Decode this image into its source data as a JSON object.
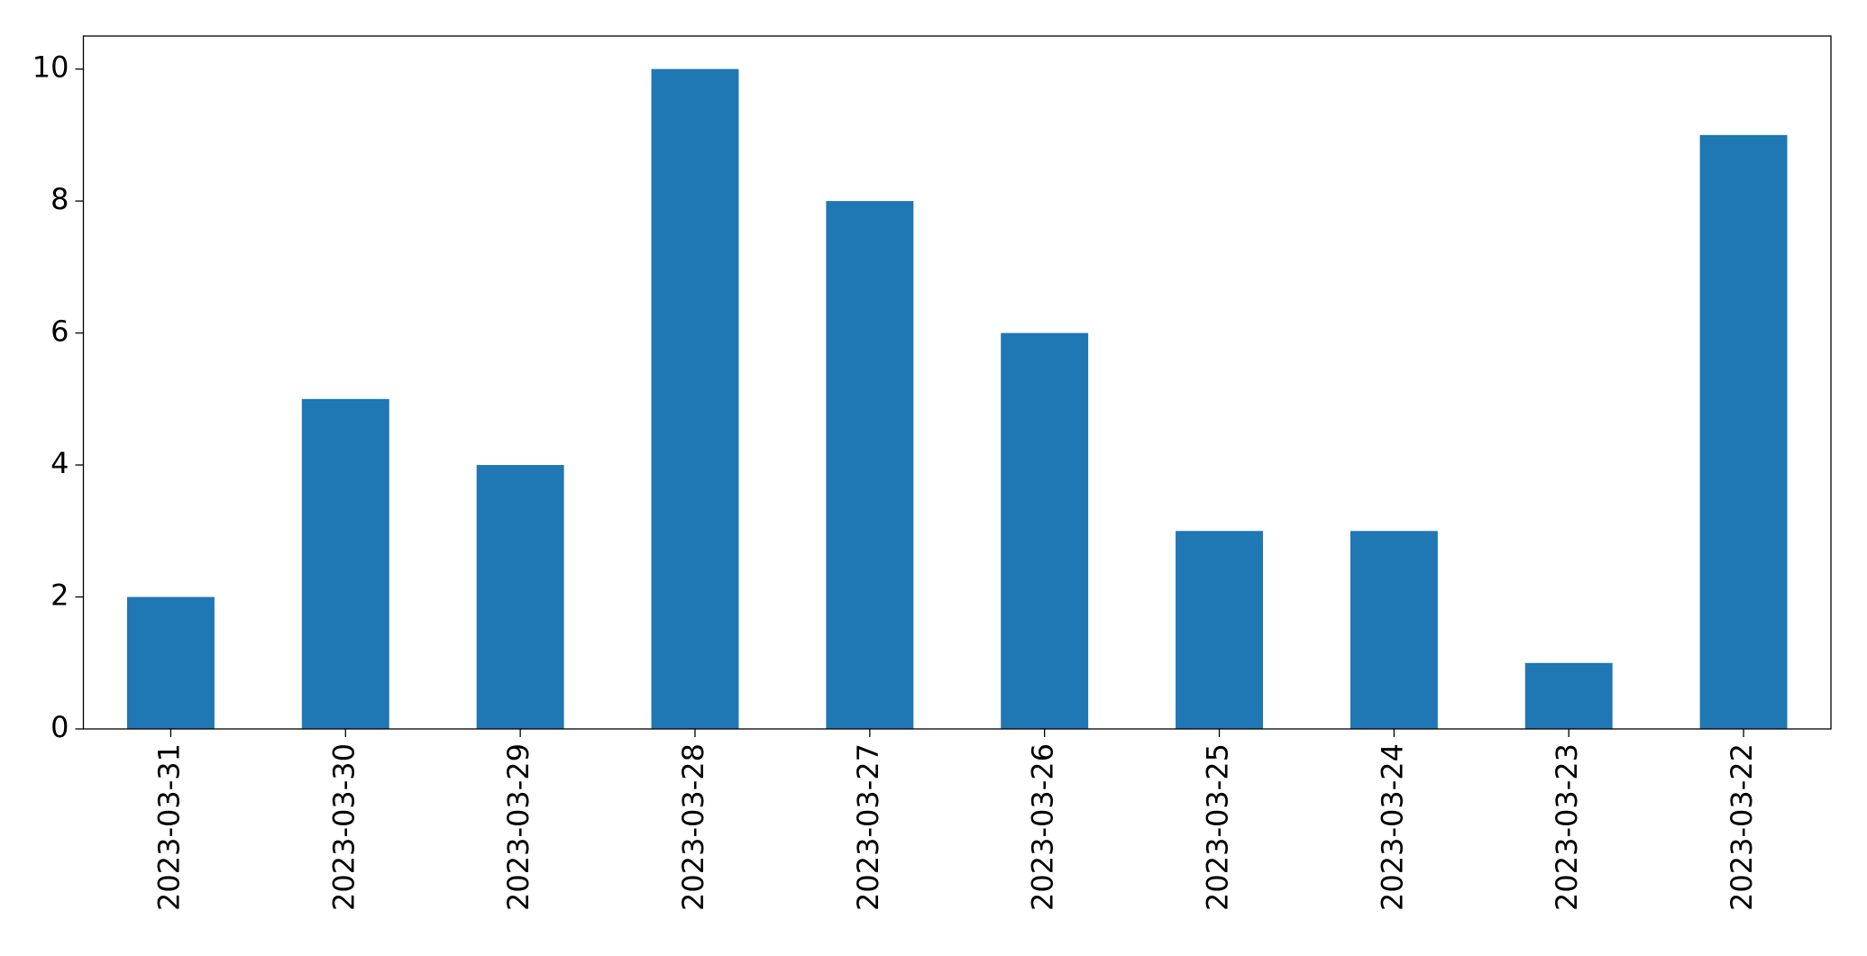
{
  "chart_data": {
    "type": "bar",
    "categories": [
      "2023-03-31",
      "2023-03-30",
      "2023-03-29",
      "2023-03-28",
      "2023-03-27",
      "2023-03-26",
      "2023-03-25",
      "2023-03-24",
      "2023-03-23",
      "2023-03-22"
    ],
    "values": [
      2,
      5,
      4,
      10,
      8,
      6,
      3,
      3,
      1,
      9
    ],
    "color": "#1f77b4",
    "ylim": [
      0,
      10.5
    ],
    "yticks": [
      0,
      2,
      4,
      6,
      8,
      10
    ],
    "grid": false
  }
}
